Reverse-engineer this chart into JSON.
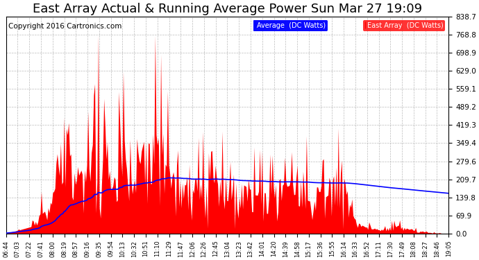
{
  "title": "East Array Actual & Running Average Power Sun Mar 27 19:09",
  "copyright": "Copyright 2016 Cartronics.com",
  "legend_labels": [
    "Average  (DC Watts)",
    "East Array  (DC Watts)"
  ],
  "x_labels": [
    "06:44",
    "07:03",
    "07:22",
    "07:41",
    "08:00",
    "08:19",
    "08:57",
    "09:16",
    "09:35",
    "09:54",
    "10:13",
    "10:32",
    "10:51",
    "11:10",
    "11:29",
    "11:47",
    "12:06",
    "12:26",
    "12:45",
    "13:04",
    "13:23",
    "13:42",
    "14:01",
    "14:20",
    "14:39",
    "14:58",
    "15:17",
    "15:36",
    "15:55",
    "16:14",
    "16:33",
    "16:52",
    "17:11",
    "17:30",
    "17:49",
    "18:08",
    "18:27",
    "18:46",
    "19:05"
  ],
  "y_ticks": [
    0.0,
    69.9,
    139.8,
    209.7,
    279.6,
    349.4,
    419.3,
    489.2,
    559.1,
    629.0,
    698.9,
    768.8,
    838.7
  ],
  "y_max": 838.7,
  "background_color": "#ffffff",
  "grid_color": "#aaaaaa",
  "title_fontsize": 13,
  "copyright_fontsize": 7.5
}
